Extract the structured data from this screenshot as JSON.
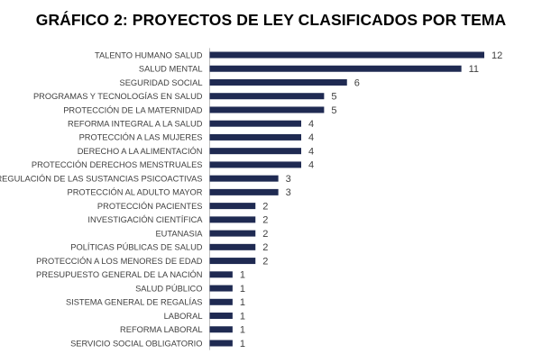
{
  "chart_data": {
    "type": "bar",
    "orientation": "horizontal",
    "title": "GRÁFICO 2: PROYECTOS DE LEY CLASIFICADOS POR TEMA",
    "xlabel": "",
    "ylabel": "",
    "categories": [
      "TALENTO HUMANO SALUD",
      "SALUD MENTAL",
      "SEGURIDAD SOCIAL",
      "PROGRAMAS Y TECNOLOGÍAS EN SALUD",
      "PROTECCIÓN DE LA MATERNIDAD",
      "REFORMA INTEGRAL A LA SALUD",
      "PROTECCIÓN A LAS MUJERES",
      "DERECHO A LA ALIMENTACIÓN",
      "PROTECCIÓN DERECHOS MENSTRUALES",
      "REGULACIÓN DE LAS SUSTANCIAS PSICOACTIVAS",
      "PROTECCIÓN AL ADULTO MAYOR",
      "PROTECCIÓN PACIENTES",
      "INVESTIGACIÓN CIENTÍFICA",
      "EUTANASIA",
      "POLÍTICAS PÚBLICAS DE SALUD",
      "PROTECCIÓN A LOS MENORES DE EDAD",
      "PRESUPUESTO GENERAL DE LA NACIÓN",
      "SALUD PÚBLICO",
      "SISTEMA GENERAL DE REGALÍAS",
      "LABORAL",
      "REFORMA LABORAL",
      "SERVICIO SOCIAL OBLIGATORIO"
    ],
    "values": [
      12,
      11,
      6,
      5,
      5,
      4,
      4,
      4,
      4,
      3,
      3,
      2,
      2,
      2,
      2,
      2,
      1,
      1,
      1,
      1,
      1,
      1
    ],
    "xlim": [
      0,
      12
    ],
    "grid": false,
    "legend": "none",
    "data_labels": true,
    "colors": {
      "bar": "#1f2a52",
      "axis": "#bfbfbf",
      "category_text": "#404040",
      "value_text": "#404040",
      "title_text": "#000000"
    }
  }
}
